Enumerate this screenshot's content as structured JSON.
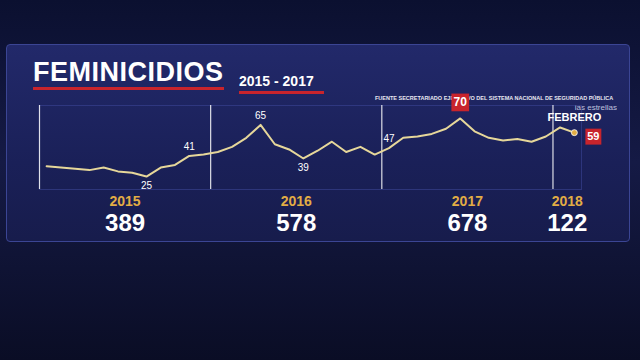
{
  "chart_data": {
    "type": "line",
    "title": "FEMINICIDIOS",
    "subtitle": "2015 - 2017",
    "source": "FUENTE SECRETARIADO EJECUTIVO DEL SISTEMA NACIONAL DE SEGURIDAD PÚBLICA",
    "annotation": "FEBRERO",
    "watermark": "las estrellas",
    "ylim": [
      15,
      80
    ],
    "yticks": [],
    "grid": false,
    "tick_labels": false,
    "series": [
      {
        "name": "2015",
        "color": "#e6d79a",
        "total": 389,
        "values": [
          33,
          32,
          31,
          30,
          32,
          29,
          28,
          25,
          32,
          34,
          41,
          42
        ],
        "value_labels": [
          null,
          null,
          null,
          null,
          null,
          null,
          null,
          "25",
          null,
          null,
          "41",
          null
        ]
      },
      {
        "name": "2016",
        "color": "#e6d79a",
        "total": 578,
        "values": [
          44,
          48,
          55,
          65,
          50,
          46,
          39,
          45,
          52,
          44,
          48,
          42
        ],
        "value_labels": [
          null,
          null,
          null,
          "65",
          null,
          null,
          "39",
          null,
          null,
          null,
          null,
          null
        ]
      },
      {
        "name": "2017",
        "color": "#e6d79a",
        "total": 678,
        "values": [
          47,
          55,
          56,
          58,
          62,
          70,
          60,
          55,
          53,
          54,
          52,
          56
        ],
        "value_labels": [
          "47",
          null,
          null,
          null,
          null,
          "70",
          null,
          null,
          null,
          null,
          null,
          null
        ]
      },
      {
        "name": "2018",
        "color": "#e6d79a",
        "total": 122,
        "values": [
          63,
          59
        ],
        "value_labels": [
          null,
          "59"
        ]
      }
    ]
  }
}
